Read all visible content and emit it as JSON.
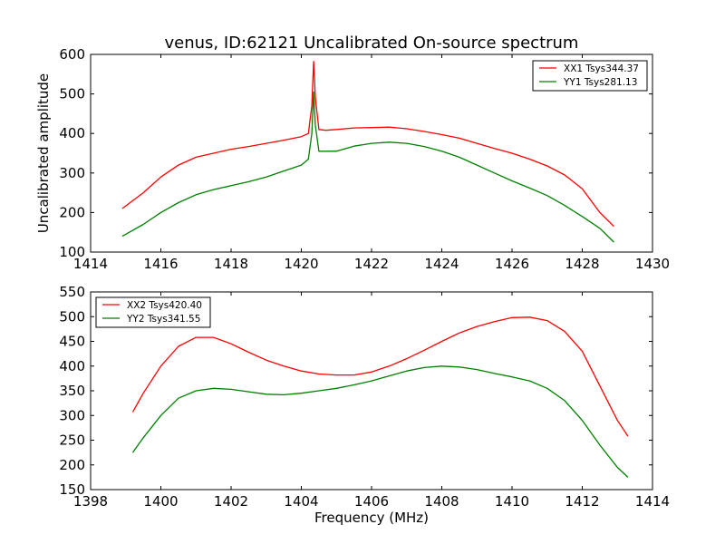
{
  "figure": {
    "title": "venus, ID:62121 Uncalibrated On-source spectrum",
    "ylabel": "Uncalibrated amplitude",
    "xlabel": "Frequency (MHz)"
  },
  "chart_data": [
    {
      "type": "line",
      "title": "venus, ID:62121 Uncalibrated On-source spectrum",
      "xlabel": "",
      "ylabel": "Uncalibrated amplitude",
      "xlim": [
        1414,
        1430
      ],
      "ylim": [
        100,
        600
      ],
      "xticks": [
        1414,
        1416,
        1418,
        1420,
        1422,
        1424,
        1426,
        1428,
        1430
      ],
      "yticks": [
        100,
        200,
        300,
        400,
        500,
        600
      ],
      "grid": false,
      "legend": "top-right",
      "series": [
        {
          "name": "XX1 Tsys344.37",
          "color": "#ff0000",
          "points": [
            [
              1414.9,
              210
            ],
            [
              1415.5,
              250
            ],
            [
              1416,
              290
            ],
            [
              1416.5,
              320
            ],
            [
              1417,
              340
            ],
            [
              1417.5,
              350
            ],
            [
              1418,
              360
            ],
            [
              1418.5,
              367
            ],
            [
              1419,
              375
            ],
            [
              1419.5,
              383
            ],
            [
              1420,
              392
            ],
            [
              1420.2,
              400
            ],
            [
              1420.3,
              470
            ],
            [
              1420.35,
              582
            ],
            [
              1420.4,
              490
            ],
            [
              1420.5,
              410
            ],
            [
              1420.7,
              408
            ],
            [
              1421,
              410
            ],
            [
              1421.5,
              414
            ],
            [
              1422,
              415
            ],
            [
              1422.5,
              416
            ],
            [
              1423,
              412
            ],
            [
              1423.5,
              405
            ],
            [
              1424,
              397
            ],
            [
              1424.5,
              388
            ],
            [
              1425,
              375
            ],
            [
              1425.5,
              362
            ],
            [
              1426,
              350
            ],
            [
              1426.5,
              335
            ],
            [
              1427,
              318
            ],
            [
              1427.5,
              295
            ],
            [
              1428,
              260
            ],
            [
              1428.5,
              200
            ],
            [
              1428.9,
              165
            ]
          ]
        },
        {
          "name": "YY1 Tsys281.13",
          "color": "#008000",
          "points": [
            [
              1414.9,
              140
            ],
            [
              1415.5,
              170
            ],
            [
              1416,
              200
            ],
            [
              1416.5,
              225
            ],
            [
              1417,
              245
            ],
            [
              1417.5,
              258
            ],
            [
              1418,
              268
            ],
            [
              1418.5,
              278
            ],
            [
              1419,
              290
            ],
            [
              1419.5,
              305
            ],
            [
              1420,
              320
            ],
            [
              1420.2,
              335
            ],
            [
              1420.3,
              400
            ],
            [
              1420.35,
              505
            ],
            [
              1420.4,
              420
            ],
            [
              1420.5,
              355
            ],
            [
              1421,
              355
            ],
            [
              1421.5,
              368
            ],
            [
              1422,
              375
            ],
            [
              1422.5,
              378
            ],
            [
              1423,
              375
            ],
            [
              1423.5,
              367
            ],
            [
              1424,
              355
            ],
            [
              1424.5,
              340
            ],
            [
              1425,
              320
            ],
            [
              1425.5,
              300
            ],
            [
              1426,
              280
            ],
            [
              1426.5,
              262
            ],
            [
              1427,
              243
            ],
            [
              1427.5,
              218
            ],
            [
              1428,
              190
            ],
            [
              1428.5,
              160
            ],
            [
              1428.9,
              125
            ]
          ]
        }
      ]
    },
    {
      "type": "line",
      "title": "",
      "xlabel": "Frequency (MHz)",
      "ylabel": "",
      "xlim": [
        1398,
        1414
      ],
      "ylim": [
        150,
        550
      ],
      "xticks": [
        1398,
        1400,
        1402,
        1404,
        1406,
        1408,
        1410,
        1412,
        1414
      ],
      "yticks": [
        150,
        200,
        250,
        300,
        350,
        400,
        450,
        500,
        550
      ],
      "grid": false,
      "legend": "top-left",
      "series": [
        {
          "name": "XX2 Tsys420.40",
          "color": "#ff0000",
          "points": [
            [
              1399.2,
              307
            ],
            [
              1399.5,
              345
            ],
            [
              1400,
              400
            ],
            [
              1400.5,
              440
            ],
            [
              1401,
              458
            ],
            [
              1401.5,
              458
            ],
            [
              1402,
              445
            ],
            [
              1402.5,
              428
            ],
            [
              1403,
              412
            ],
            [
              1403.5,
              400
            ],
            [
              1404,
              390
            ],
            [
              1404.5,
              384
            ],
            [
              1405,
              382
            ],
            [
              1405.5,
              382
            ],
            [
              1406,
              388
            ],
            [
              1406.5,
              400
            ],
            [
              1407,
              415
            ],
            [
              1407.5,
              432
            ],
            [
              1408,
              450
            ],
            [
              1408.5,
              467
            ],
            [
              1409,
              480
            ],
            [
              1409.5,
              490
            ],
            [
              1410,
              498
            ],
            [
              1410.5,
              499
            ],
            [
              1411,
              492
            ],
            [
              1411.5,
              470
            ],
            [
              1412,
              430
            ],
            [
              1412.5,
              360
            ],
            [
              1413,
              290
            ],
            [
              1413.3,
              258
            ]
          ]
        },
        {
          "name": "YY2 Tsys341.55",
          "color": "#008000",
          "points": [
            [
              1399.2,
              225
            ],
            [
              1399.5,
              255
            ],
            [
              1400,
              300
            ],
            [
              1400.5,
              335
            ],
            [
              1401,
              350
            ],
            [
              1401.5,
              355
            ],
            [
              1402,
              353
            ],
            [
              1402.5,
              348
            ],
            [
              1403,
              343
            ],
            [
              1403.5,
              342
            ],
            [
              1404,
              345
            ],
            [
              1404.5,
              350
            ],
            [
              1405,
              355
            ],
            [
              1405.5,
              362
            ],
            [
              1406,
              370
            ],
            [
              1406.5,
              380
            ],
            [
              1407,
              390
            ],
            [
              1407.5,
              397
            ],
            [
              1408,
              400
            ],
            [
              1408.5,
              398
            ],
            [
              1409,
              393
            ],
            [
              1409.5,
              385
            ],
            [
              1410,
              378
            ],
            [
              1410.5,
              370
            ],
            [
              1411,
              355
            ],
            [
              1411.5,
              330
            ],
            [
              1412,
              290
            ],
            [
              1412.5,
              240
            ],
            [
              1413,
              195
            ],
            [
              1413.3,
              175
            ]
          ]
        }
      ]
    }
  ]
}
